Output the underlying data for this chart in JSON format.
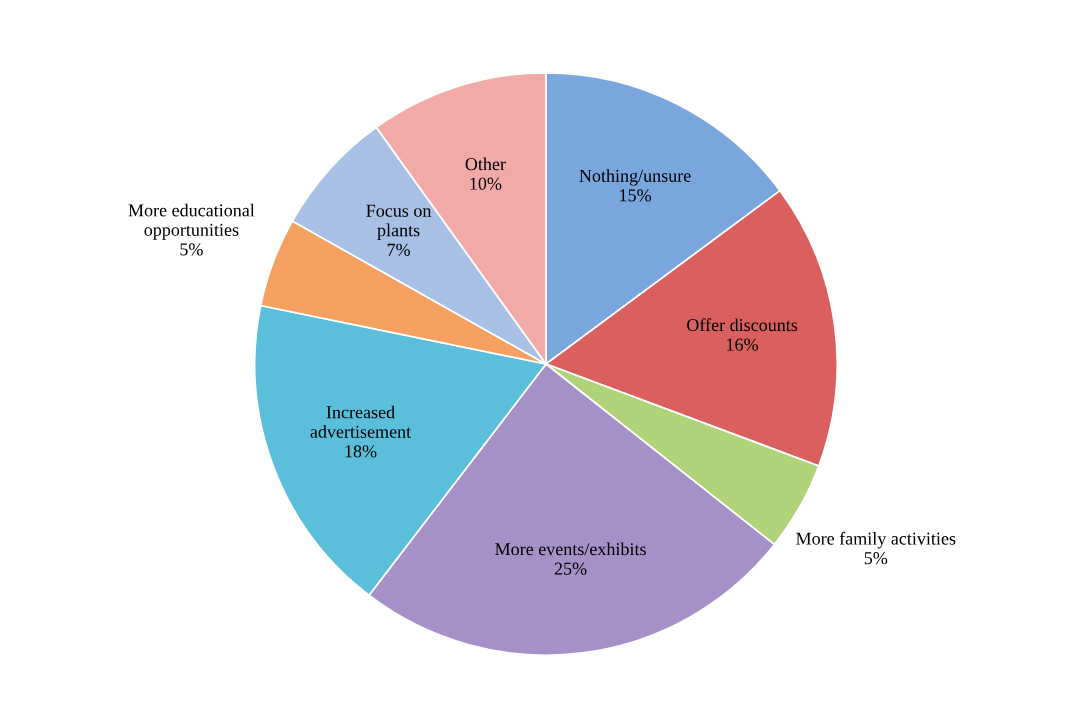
{
  "chart_data": {
    "type": "pie",
    "categories": [
      "Nothing/unsure",
      "Offer discounts",
      "More family activities",
      "More events/exhibits",
      "Increased\nadvertisement",
      "More educational\nopportunities",
      "Focus on\nplants",
      "Other"
    ],
    "values": [
      15,
      16,
      5,
      25,
      18,
      5,
      7,
      10
    ],
    "value_labels": [
      "15%",
      "16%",
      "5%",
      "25%",
      "18%",
      "5%",
      "7%",
      "10%"
    ],
    "colors": [
      "#7aa6de",
      "#d9605e",
      "#b0d37a",
      "#a690c8",
      "#5bbfdc",
      "#f4a060",
      "#a9c0e6",
      "#f2aaa8"
    ],
    "legend": false
  }
}
